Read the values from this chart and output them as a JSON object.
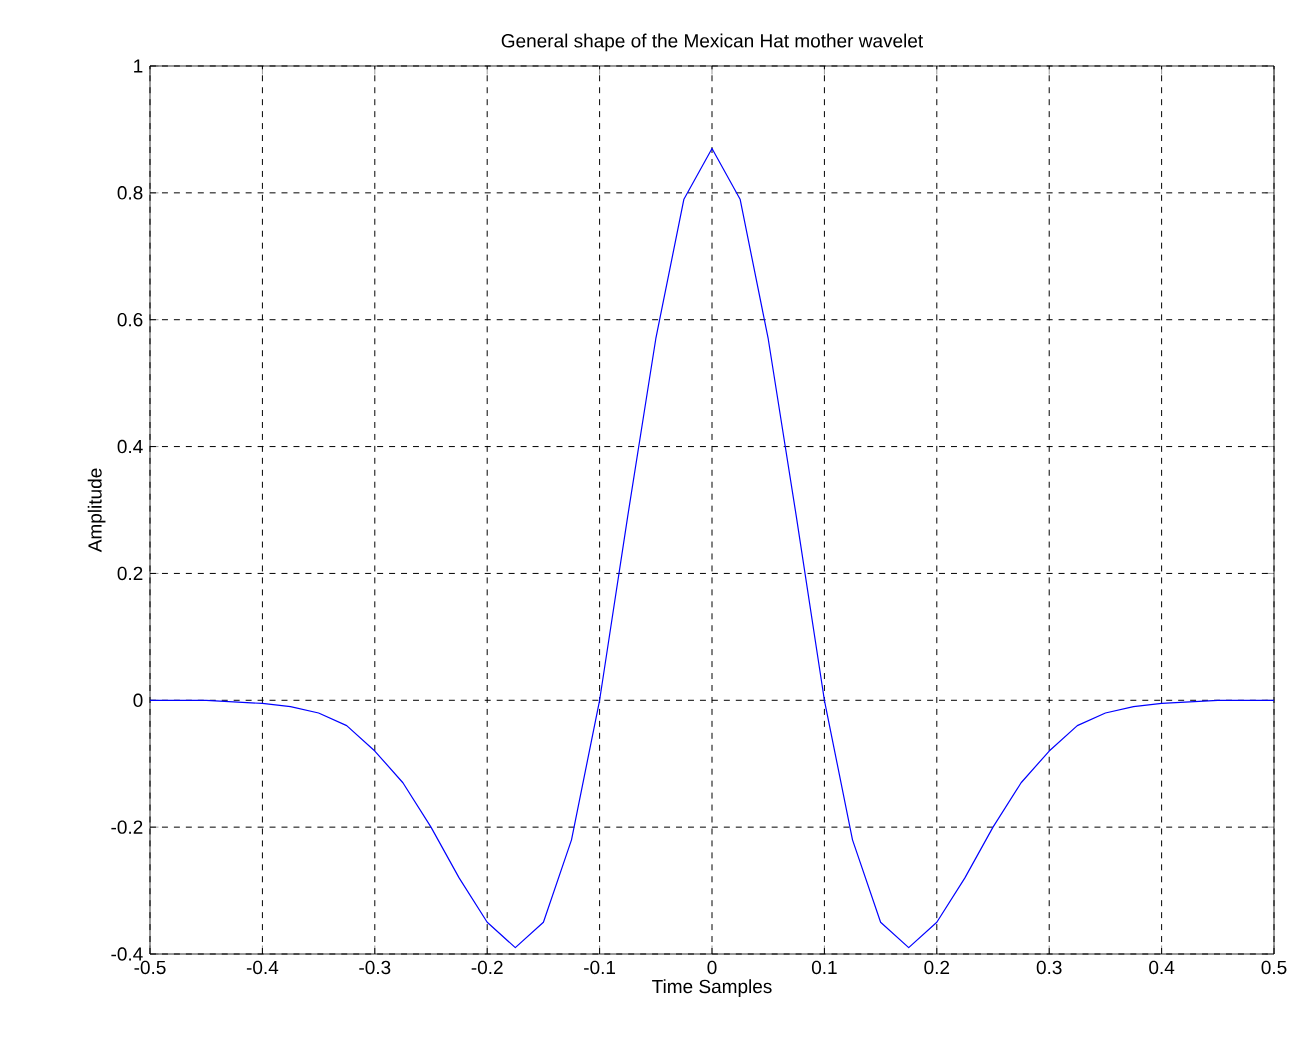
{
  "chart_data": {
    "type": "line",
    "title": "General shape of the Mexican Hat mother wavelet",
    "xlabel": "Time Samples",
    "ylabel": "Amplitude",
    "x": [
      -0.5,
      -0.45,
      -0.4,
      -0.375,
      -0.35,
      -0.325,
      -0.3,
      -0.275,
      -0.25,
      -0.225,
      -0.2,
      -0.175,
      -0.15,
      -0.125,
      -0.1,
      -0.075,
      -0.05,
      -0.025,
      0,
      0.025,
      0.05,
      0.075,
      0.1,
      0.125,
      0.15,
      0.175,
      0.2,
      0.225,
      0.25,
      0.275,
      0.3,
      0.325,
      0.35,
      0.375,
      0.4,
      0.45,
      0.5
    ],
    "series": [
      {
        "color": "#0000ff",
        "values": [
          0,
          0,
          -0.005,
          -0.01,
          -0.02,
          -0.04,
          -0.08,
          -0.13,
          -0.2,
          -0.28,
          -0.35,
          -0.39,
          -0.35,
          -0.22,
          0,
          0.29,
          0.57,
          0.79,
          0.87,
          0.79,
          0.57,
          0.29,
          0,
          -0.22,
          -0.35,
          -0.39,
          -0.35,
          -0.28,
          -0.2,
          -0.13,
          -0.08,
          -0.04,
          -0.02,
          -0.01,
          -0.005,
          0,
          0
        ]
      }
    ],
    "xlim": [
      -0.5,
      0.5
    ],
    "ylim": [
      -0.4,
      1
    ],
    "xticks": [
      -0.5,
      -0.4,
      -0.3,
      -0.2,
      -0.1,
      0,
      0.1,
      0.2,
      0.3,
      0.4,
      0.5
    ],
    "yticks": [
      -0.4,
      -0.2,
      0,
      0.2,
      0.4,
      0.6,
      0.8,
      1
    ],
    "grid": true,
    "marker": "none",
    "line_style": "solid"
  }
}
